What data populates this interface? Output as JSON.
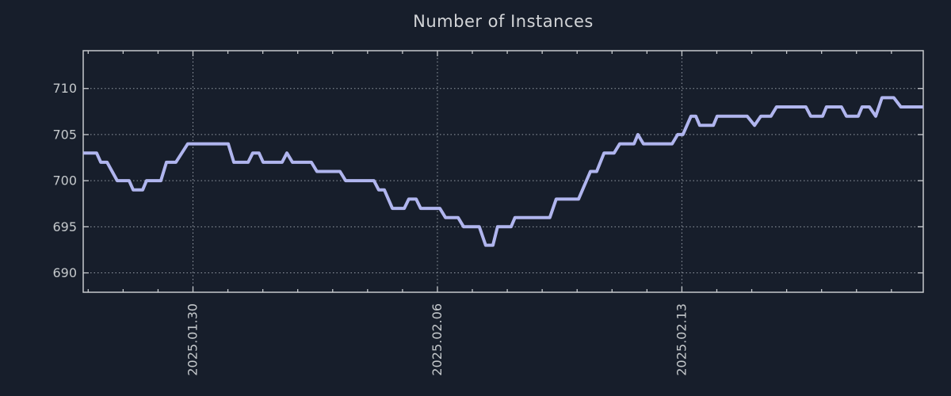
{
  "figure": {
    "background_color": "#171e2b"
  },
  "colors": {
    "axis_border": "#c6c9cd",
    "tick_mark": "#c6c9cd",
    "tick_label": "#c4c8cb",
    "title": "#d2d4d7",
    "grid": "#a2a9b2",
    "series_line": "#b0b5ee"
  },
  "chart_data": {
    "type": "line",
    "title": "Number of Instances",
    "xlabel": "",
    "ylabel": "",
    "legend": null,
    "grid": {
      "style": "dotted",
      "horizontal_at": [
        690,
        695,
        700,
        705,
        710
      ],
      "vertical_at_days": [
        0,
        7,
        14
      ]
    },
    "x_axis": {
      "unit": "days since 2025-01-30",
      "range_days": [
        -3.143,
        20.912
      ],
      "minor_tick_interval_days": 1,
      "major_ticks": [
        {
          "position_days": 0,
          "label": "2025.01.30"
        },
        {
          "position_days": 7,
          "label": "2025.02.06"
        },
        {
          "position_days": 14,
          "label": "2025.02.13"
        }
      ],
      "label_rotation_deg": 90
    },
    "y_axis": {
      "range": [
        687.9,
        714.1
      ],
      "ticks": [
        690,
        695,
        700,
        705,
        710
      ]
    },
    "series": [
      {
        "name": "Number of Instances",
        "color": "#b0b5ee",
        "line_width": 4,
        "points": [
          [
            -3.14,
            703
          ],
          [
            -2.76,
            703
          ],
          [
            -2.64,
            702
          ],
          [
            -2.46,
            702
          ],
          [
            -2.17,
            700
          ],
          [
            -1.83,
            700
          ],
          [
            -1.71,
            699
          ],
          [
            -1.44,
            699
          ],
          [
            -1.33,
            700
          ],
          [
            -0.92,
            700
          ],
          [
            -0.76,
            702
          ],
          [
            -0.49,
            702
          ],
          [
            -0.15,
            704
          ],
          [
            1.01,
            704
          ],
          [
            1.17,
            702
          ],
          [
            1.58,
            702
          ],
          [
            1.71,
            703
          ],
          [
            1.89,
            703
          ],
          [
            2.01,
            702
          ],
          [
            2.55,
            702
          ],
          [
            2.69,
            703
          ],
          [
            2.85,
            702
          ],
          [
            3.39,
            702
          ],
          [
            3.55,
            701
          ],
          [
            4.21,
            701
          ],
          [
            4.37,
            700
          ],
          [
            5.18,
            700
          ],
          [
            5.32,
            699
          ],
          [
            5.48,
            699
          ],
          [
            5.71,
            697
          ],
          [
            6.05,
            697
          ],
          [
            6.18,
            698
          ],
          [
            6.39,
            698
          ],
          [
            6.52,
            697
          ],
          [
            7.07,
            697
          ],
          [
            7.23,
            696
          ],
          [
            7.59,
            696
          ],
          [
            7.75,
            695
          ],
          [
            8.2,
            695
          ],
          [
            8.38,
            693
          ],
          [
            8.59,
            693
          ],
          [
            8.72,
            695
          ],
          [
            9.11,
            695
          ],
          [
            9.22,
            696
          ],
          [
            10.22,
            696
          ],
          [
            10.4,
            698
          ],
          [
            11.04,
            698
          ],
          [
            11.38,
            701
          ],
          [
            11.56,
            701
          ],
          [
            11.77,
            703
          ],
          [
            12.06,
            703
          ],
          [
            12.22,
            704
          ],
          [
            12.63,
            704
          ],
          [
            12.74,
            705
          ],
          [
            12.9,
            704
          ],
          [
            13.72,
            704
          ],
          [
            13.88,
            705
          ],
          [
            14.03,
            705
          ],
          [
            14.26,
            707
          ],
          [
            14.4,
            707
          ],
          [
            14.51,
            706
          ],
          [
            14.9,
            706
          ],
          [
            15.01,
            707
          ],
          [
            15.87,
            707
          ],
          [
            16.08,
            706
          ],
          [
            16.26,
            707
          ],
          [
            16.55,
            707
          ],
          [
            16.71,
            708
          ],
          [
            17.55,
            708
          ],
          [
            17.69,
            707
          ],
          [
            18.03,
            707
          ],
          [
            18.14,
            708
          ],
          [
            18.57,
            708
          ],
          [
            18.71,
            707
          ],
          [
            19.05,
            707
          ],
          [
            19.16,
            708
          ],
          [
            19.37,
            708
          ],
          [
            19.55,
            707
          ],
          [
            19.73,
            709
          ],
          [
            20.07,
            709
          ],
          [
            20.27,
            708
          ],
          [
            20.91,
            708
          ]
        ]
      }
    ]
  }
}
